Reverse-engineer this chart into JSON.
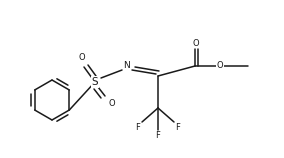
{
  "bg_color": "#ffffff",
  "line_color": "#1a1a1a",
  "line_width": 1.1,
  "font_size": 6.5,
  "figsize": [
    2.84,
    1.58
  ],
  "dpi": 100,
  "xlim": [
    0,
    284
  ],
  "ylim": [
    0,
    158
  ]
}
